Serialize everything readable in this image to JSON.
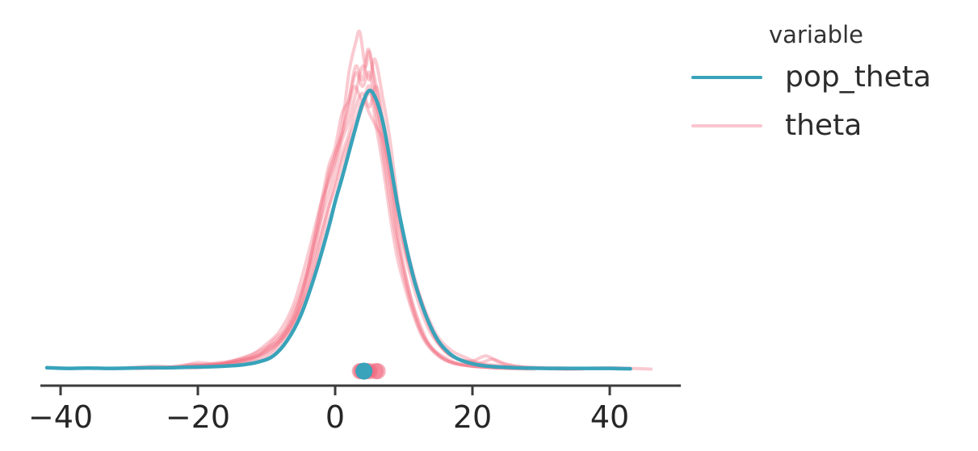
{
  "chart_data": {
    "type": "kde",
    "title": "",
    "xlabel": "",
    "ylabel": "",
    "x_ticks": [
      -40,
      -20,
      0,
      20,
      40
    ],
    "xlim": [
      -47,
      50
    ],
    "grid": false,
    "legend": {
      "title": "variable",
      "position": "upper right",
      "entries": [
        {
          "label": "pop_theta",
          "color": "#38a3ba"
        },
        {
          "label": "theta",
          "color": "#f9c6cf"
        }
      ]
    },
    "colors": {
      "pop_theta_line": "#38a3ba",
      "theta_line_rgba": "rgba(241,115,135,0.38)",
      "theta_dot_rgba": "rgba(240,98,122,0.5)",
      "axis": "#3b3b3b",
      "tick_label": "#262626",
      "legend_text": "#2b2b2b",
      "legend_title_text": "#333333"
    },
    "point_estimates": {
      "pop_theta": [
        4.2
      ],
      "theta": [
        3.6,
        3.8,
        4.0,
        4.3,
        4.6,
        5.0,
        5.9,
        6.2
      ]
    },
    "series": [
      {
        "name": "pop_theta",
        "variable": "pop_theta",
        "points": [
          [
            -42,
            0.01
          ],
          [
            -39,
            0.008
          ],
          [
            -36,
            0.009
          ],
          [
            -33,
            0.008
          ],
          [
            -30,
            0.009
          ],
          [
            -27,
            0.01
          ],
          [
            -24,
            0.01
          ],
          [
            -21,
            0.012
          ],
          [
            -18,
            0.013
          ],
          [
            -15,
            0.016
          ],
          [
            -13,
            0.02
          ],
          [
            -11,
            0.028
          ],
          [
            -9,
            0.045
          ],
          [
            -7,
            0.09
          ],
          [
            -5,
            0.165
          ],
          [
            -3,
            0.28
          ],
          [
            -1,
            0.42
          ],
          [
            0,
            0.5
          ],
          [
            1,
            0.57
          ],
          [
            2,
            0.645
          ],
          [
            3,
            0.72
          ],
          [
            4,
            0.79
          ],
          [
            5,
            0.828
          ],
          [
            6,
            0.8
          ],
          [
            7,
            0.73
          ],
          [
            8,
            0.62
          ],
          [
            9,
            0.5
          ],
          [
            10,
            0.4
          ],
          [
            11,
            0.31
          ],
          [
            12,
            0.235
          ],
          [
            13.5,
            0.15
          ],
          [
            15,
            0.09
          ],
          [
            16.5,
            0.055
          ],
          [
            18,
            0.035
          ],
          [
            20,
            0.022
          ],
          [
            22,
            0.015
          ],
          [
            25,
            0.011
          ],
          [
            28,
            0.009
          ],
          [
            32,
            0.008
          ],
          [
            36,
            0.008
          ],
          [
            40,
            0.008
          ],
          [
            43,
            0.007
          ]
        ]
      },
      {
        "name": "theta[0]",
        "variable": "theta",
        "points": [
          [
            -29,
            0.008
          ],
          [
            -24,
            0.012
          ],
          [
            -20,
            0.01
          ],
          [
            -16,
            0.02
          ],
          [
            -13,
            0.025
          ],
          [
            -10,
            0.04
          ],
          [
            -8,
            0.08
          ],
          [
            -6,
            0.14
          ],
          [
            -4,
            0.28
          ],
          [
            -2,
            0.46
          ],
          [
            -1,
            0.58
          ],
          [
            0,
            0.64
          ],
          [
            1,
            0.72
          ],
          [
            2,
            0.88
          ],
          [
            3,
            0.97
          ],
          [
            3.6,
            1.0
          ],
          [
            4.4,
            0.9
          ],
          [
            5,
            0.94
          ],
          [
            6,
            0.8
          ],
          [
            7,
            0.66
          ],
          [
            8,
            0.54
          ],
          [
            9,
            0.4
          ],
          [
            10,
            0.3
          ],
          [
            11.5,
            0.18
          ],
          [
            13,
            0.1
          ],
          [
            15,
            0.05
          ],
          [
            17,
            0.025
          ],
          [
            20,
            0.015
          ],
          [
            24,
            0.01
          ],
          [
            28,
            0.007
          ]
        ]
      },
      {
        "name": "theta[1]",
        "variable": "theta",
        "points": [
          [
            -26,
            0.01
          ],
          [
            -21,
            0.015
          ],
          [
            -17,
            0.02
          ],
          [
            -14,
            0.03
          ],
          [
            -11,
            0.05
          ],
          [
            -9,
            0.09
          ],
          [
            -7,
            0.13
          ],
          [
            -5,
            0.22
          ],
          [
            -3,
            0.38
          ],
          [
            -1,
            0.52
          ],
          [
            0,
            0.6
          ],
          [
            1,
            0.68
          ],
          [
            2,
            0.74
          ],
          [
            3,
            0.82
          ],
          [
            4,
            0.9
          ],
          [
            5,
            0.86
          ],
          [
            5.8,
            0.92
          ],
          [
            7,
            0.8
          ],
          [
            8,
            0.68
          ],
          [
            9,
            0.52
          ],
          [
            10,
            0.38
          ],
          [
            11,
            0.3
          ],
          [
            12.5,
            0.2
          ],
          [
            14,
            0.12
          ],
          [
            16,
            0.06
          ],
          [
            18,
            0.035
          ],
          [
            21,
            0.02
          ],
          [
            25,
            0.012
          ],
          [
            30,
            0.008
          ],
          [
            34,
            0.006
          ]
        ]
      },
      {
        "name": "theta[2]",
        "variable": "theta",
        "points": [
          [
            -30,
            0.008
          ],
          [
            -25,
            0.01
          ],
          [
            -21,
            0.02
          ],
          [
            -18,
            0.015
          ],
          [
            -15,
            0.03
          ],
          [
            -12,
            0.05
          ],
          [
            -10,
            0.07
          ],
          [
            -8,
            0.1
          ],
          [
            -6,
            0.18
          ],
          [
            -4,
            0.3
          ],
          [
            -2,
            0.5
          ],
          [
            -1,
            0.6
          ],
          [
            0,
            0.66
          ],
          [
            1,
            0.76
          ],
          [
            2,
            0.8
          ],
          [
            3,
            0.88
          ],
          [
            4,
            0.84
          ],
          [
            5,
            0.88
          ],
          [
            6,
            0.76
          ],
          [
            7,
            0.64
          ],
          [
            8,
            0.5
          ],
          [
            9,
            0.38
          ],
          [
            10.5,
            0.24
          ],
          [
            12,
            0.14
          ],
          [
            13.5,
            0.08
          ],
          [
            15.5,
            0.04
          ],
          [
            18,
            0.02
          ],
          [
            22,
            0.012
          ],
          [
            26,
            0.008
          ]
        ]
      },
      {
        "name": "theta[3]",
        "variable": "theta",
        "points": [
          [
            -24,
            0.01
          ],
          [
            -19,
            0.02
          ],
          [
            -15,
            0.03
          ],
          [
            -12,
            0.04
          ],
          [
            -10,
            0.06
          ],
          [
            -8,
            0.09
          ],
          [
            -6,
            0.15
          ],
          [
            -4,
            0.24
          ],
          [
            -2,
            0.4
          ],
          [
            0,
            0.56
          ],
          [
            1,
            0.64
          ],
          [
            2,
            0.7
          ],
          [
            3,
            0.78
          ],
          [
            4,
            0.82
          ],
          [
            5,
            0.78
          ],
          [
            6,
            0.84
          ],
          [
            7,
            0.74
          ],
          [
            8,
            0.62
          ],
          [
            9,
            0.5
          ],
          [
            10,
            0.4
          ],
          [
            11.5,
            0.28
          ],
          [
            13,
            0.18
          ],
          [
            14.5,
            0.1
          ],
          [
            16.5,
            0.05
          ],
          [
            19,
            0.03
          ],
          [
            22,
            0.02
          ],
          [
            26,
            0.012
          ],
          [
            31,
            0.008
          ],
          [
            36,
            0.006
          ]
        ]
      },
      {
        "name": "theta[4]",
        "variable": "theta",
        "points": [
          [
            -27,
            0.008
          ],
          [
            -22,
            0.012
          ],
          [
            -18,
            0.02
          ],
          [
            -14,
            0.03
          ],
          [
            -11,
            0.05
          ],
          [
            -9,
            0.08
          ],
          [
            -7,
            0.12
          ],
          [
            -5,
            0.2
          ],
          [
            -3,
            0.34
          ],
          [
            -1,
            0.48
          ],
          [
            0,
            0.54
          ],
          [
            1,
            0.62
          ],
          [
            2,
            0.68
          ],
          [
            3,
            0.74
          ],
          [
            4,
            0.8
          ],
          [
            5,
            0.76
          ],
          [
            6,
            0.72
          ],
          [
            7,
            0.68
          ],
          [
            8,
            0.58
          ],
          [
            9,
            0.46
          ],
          [
            10,
            0.36
          ],
          [
            11,
            0.28
          ],
          [
            12.5,
            0.18
          ],
          [
            14,
            0.11
          ],
          [
            16,
            0.06
          ],
          [
            18,
            0.035
          ],
          [
            20,
            0.03
          ],
          [
            22,
            0.045
          ],
          [
            24,
            0.025
          ],
          [
            27,
            0.012
          ],
          [
            31,
            0.008
          ],
          [
            35,
            0.006
          ]
        ]
      },
      {
        "name": "theta[5]",
        "variable": "theta",
        "points": [
          [
            -22,
            0.012
          ],
          [
            -18,
            0.018
          ],
          [
            -14,
            0.028
          ],
          [
            -11,
            0.045
          ],
          [
            -9,
            0.07
          ],
          [
            -7,
            0.11
          ],
          [
            -5,
            0.18
          ],
          [
            -3,
            0.3
          ],
          [
            -1,
            0.44
          ],
          [
            0,
            0.5
          ],
          [
            1,
            0.58
          ],
          [
            2,
            0.66
          ],
          [
            3,
            0.72
          ],
          [
            4,
            0.78
          ],
          [
            5,
            0.82
          ],
          [
            6,
            0.78
          ],
          [
            7,
            0.7
          ],
          [
            8,
            0.6
          ],
          [
            9,
            0.48
          ],
          [
            10,
            0.38
          ],
          [
            11,
            0.3
          ],
          [
            12,
            0.24
          ],
          [
            13.5,
            0.16
          ],
          [
            15,
            0.1
          ],
          [
            17,
            0.06
          ],
          [
            19,
            0.04
          ],
          [
            21,
            0.025
          ],
          [
            23,
            0.035
          ],
          [
            25,
            0.02
          ],
          [
            28,
            0.012
          ],
          [
            32,
            0.01
          ],
          [
            36,
            0.008
          ],
          [
            40,
            0.01
          ],
          [
            43,
            0.008
          ],
          [
            46,
            0.006
          ]
        ]
      },
      {
        "name": "theta[6]",
        "variable": "theta",
        "points": [
          [
            -30,
            0.01
          ],
          [
            -26,
            0.015
          ],
          [
            -23,
            0.012
          ],
          [
            -20,
            0.025
          ],
          [
            -17,
            0.02
          ],
          [
            -14,
            0.035
          ],
          [
            -12,
            0.05
          ],
          [
            -10,
            0.08
          ],
          [
            -8,
            0.12
          ],
          [
            -6,
            0.2
          ],
          [
            -4,
            0.34
          ],
          [
            -2,
            0.5
          ],
          [
            -1,
            0.56
          ],
          [
            0,
            0.64
          ],
          [
            1,
            0.7
          ],
          [
            2,
            0.78
          ],
          [
            2.8,
            0.84
          ],
          [
            4,
            0.8
          ],
          [
            5,
            0.84
          ],
          [
            6,
            0.72
          ],
          [
            7,
            0.6
          ],
          [
            8,
            0.46
          ],
          [
            9,
            0.34
          ],
          [
            10,
            0.26
          ],
          [
            11.5,
            0.16
          ],
          [
            13,
            0.09
          ],
          [
            15,
            0.045
          ],
          [
            17,
            0.025
          ],
          [
            20,
            0.014
          ],
          [
            24,
            0.009
          ]
        ]
      },
      {
        "name": "theta[7]",
        "variable": "theta",
        "points": [
          [
            -25,
            0.009
          ],
          [
            -20,
            0.014
          ],
          [
            -16,
            0.022
          ],
          [
            -13,
            0.03
          ],
          [
            -10,
            0.05
          ],
          [
            -8,
            0.09
          ],
          [
            -6,
            0.16
          ],
          [
            -4,
            0.3
          ],
          [
            -2,
            0.48
          ],
          [
            -1,
            0.56
          ],
          [
            0,
            0.62
          ],
          [
            1,
            0.7
          ],
          [
            2,
            0.8
          ],
          [
            3,
            0.9
          ],
          [
            4,
            0.86
          ],
          [
            4.8,
            0.95
          ],
          [
            5.6,
            0.88
          ],
          [
            6.5,
            0.78
          ],
          [
            7.5,
            0.64
          ],
          [
            8.5,
            0.5
          ],
          [
            9.5,
            0.36
          ],
          [
            11,
            0.22
          ],
          [
            12.5,
            0.13
          ],
          [
            14,
            0.07
          ],
          [
            16,
            0.04
          ],
          [
            18,
            0.022
          ],
          [
            21,
            0.013
          ],
          [
            25,
            0.008
          ],
          [
            29,
            0.006
          ]
        ]
      }
    ]
  }
}
